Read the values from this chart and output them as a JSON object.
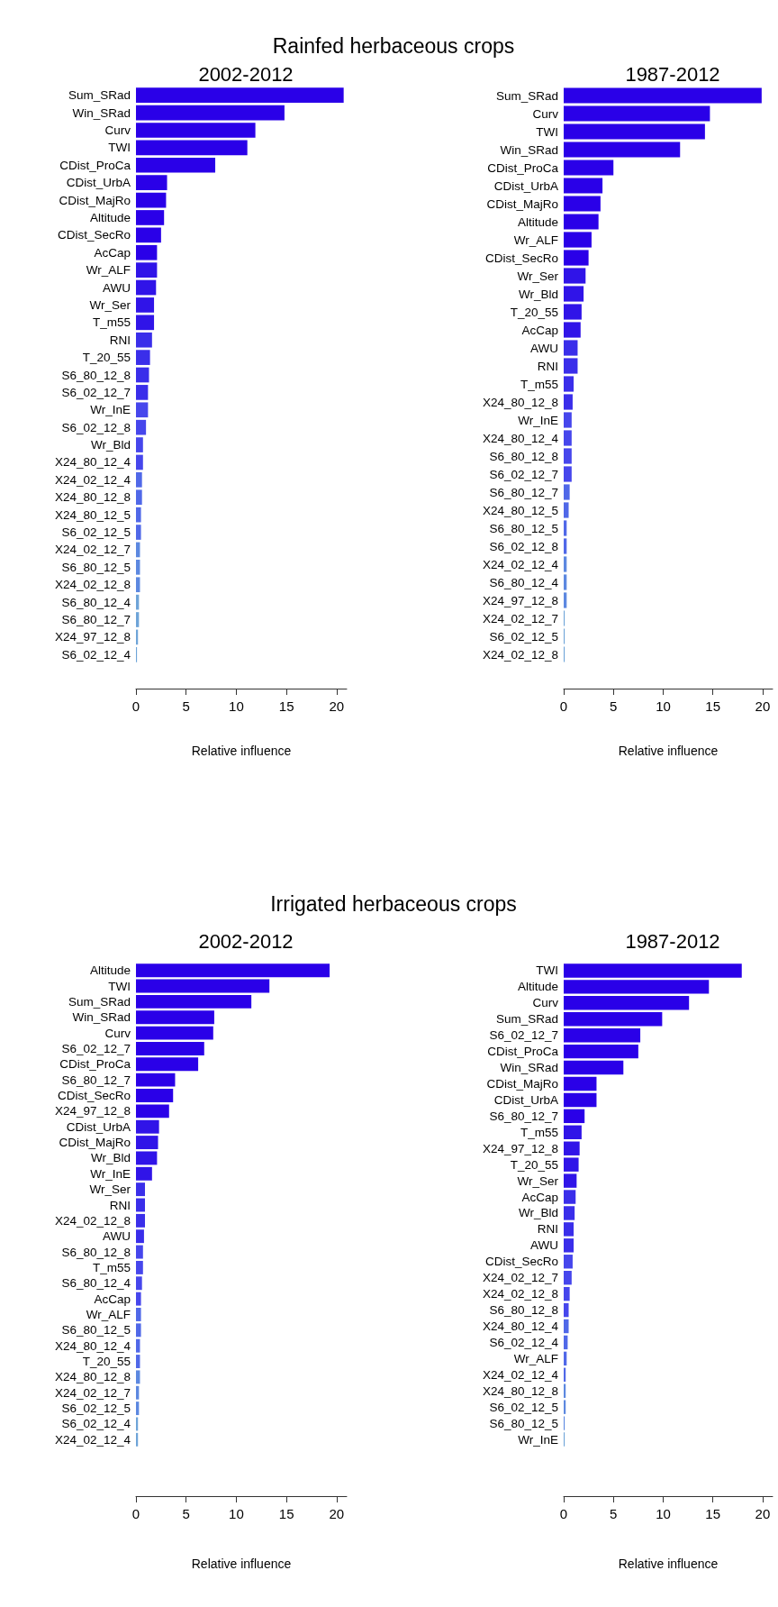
{
  "chart_data": [
    {
      "type": "bar",
      "orientation": "horizontal",
      "title": "2002-2012",
      "xlabel": "Relative influence",
      "annotations": [
        "Rainfed herbaceous crops"
      ],
      "xlim": [
        0,
        21
      ],
      "xticks": [
        0,
        5,
        10,
        15,
        20
      ],
      "grid": false,
      "categories": [
        "Sum_SRad",
        "Win_SRad",
        "Curv",
        "TWI",
        "CDist_ProCa",
        "CDist_UrbA",
        "CDist_MajRo",
        "Altitude",
        "CDist_SecRo",
        "AcCap",
        "Wr_ALF",
        "AWU",
        "Wr_Ser",
        "T_m55",
        "RNI",
        "T_20_55",
        "S6_80_12_8",
        "S6_02_12_7",
        "Wr_InE",
        "S6_02_12_8",
        "Wr_Bld",
        "X24_80_12_4",
        "X24_02_12_4",
        "X24_80_12_8",
        "X24_80_12_5",
        "S6_02_12_5",
        "X24_02_12_7",
        "S6_80_12_5",
        "X24_02_12_8",
        "S6_80_12_4",
        "S6_80_12_7",
        "X24_97_12_8",
        "S6_02_12_4"
      ],
      "values": [
        20.7,
        14.8,
        11.9,
        11.1,
        7.9,
        3.1,
        3.0,
        2.8,
        2.5,
        2.1,
        2.1,
        2.0,
        1.8,
        1.8,
        1.6,
        1.4,
        1.3,
        1.2,
        1.2,
        1.0,
        0.7,
        0.7,
        0.6,
        0.6,
        0.5,
        0.5,
        0.4,
        0.4,
        0.4,
        0.3,
        0.3,
        0.2,
        0.1
      ],
      "colors": [
        "#2a00e8",
        "#2a00e8",
        "#2a00e8",
        "#2a00e8",
        "#2a00e8",
        "#2a00e8",
        "#2a00e8",
        "#2a00e8",
        "#2a00e8",
        "#2a00e8",
        "#3014e8",
        "#3014e8",
        "#3014e8",
        "#3014e8",
        "#3a2eea",
        "#3a2eea",
        "#3a2eea",
        "#3a2eea",
        "#4646ec",
        "#4646ec",
        "#4646ec",
        "#4646ec",
        "#5068e8",
        "#5068e8",
        "#5068e8",
        "#5068e8",
        "#5c88e0",
        "#5c88e0",
        "#5c88e0",
        "#6ea4d8",
        "#6ea4d8",
        "#6ea4d8",
        "#6ea4d8"
      ]
    },
    {
      "type": "bar",
      "orientation": "horizontal",
      "title": "1987-2012",
      "xlabel": "Relative influence",
      "xlim": [
        0,
        21
      ],
      "xticks": [
        0,
        5,
        10,
        15,
        20
      ],
      "grid": false,
      "categories": [
        "Sum_SRad",
        "Curv",
        "TWI",
        "Win_SRad",
        "CDist_ProCa",
        "CDist_UrbA",
        "CDist_MajRo",
        "Altitude",
        "Wr_ALF",
        "CDist_SecRo",
        "Wr_Ser",
        "Wr_Bld",
        "T_20_55",
        "AcCap",
        "AWU",
        "RNI",
        "T_m55",
        "X24_80_12_8",
        "Wr_InE",
        "X24_80_12_4",
        "S6_80_12_8",
        "S6_02_12_7",
        "S6_80_12_7",
        "X24_80_12_5",
        "S6_80_12_5",
        "S6_02_12_8",
        "X24_02_12_4",
        "S6_80_12_4",
        "X24_97_12_8",
        "X24_02_12_7",
        "S6_02_12_5",
        "X24_02_12_8"
      ],
      "values": [
        19.9,
        14.7,
        14.2,
        11.7,
        5.0,
        3.9,
        3.7,
        3.5,
        2.8,
        2.5,
        2.2,
        2.0,
        1.8,
        1.7,
        1.4,
        1.4,
        1.0,
        0.9,
        0.8,
        0.8,
        0.8,
        0.8,
        0.6,
        0.5,
        0.3,
        0.3,
        0.3,
        0.3,
        0.3,
        0.1,
        0.1,
        0.1
      ],
      "colors": [
        "#2a00e8",
        "#2a00e8",
        "#2a00e8",
        "#2a00e8",
        "#2a00e8",
        "#2a00e8",
        "#2a00e8",
        "#2a00e8",
        "#2a00e8",
        "#2a00e8",
        "#3014e8",
        "#3014e8",
        "#3014e8",
        "#3014e8",
        "#3a2eea",
        "#3a2eea",
        "#3a2eea",
        "#3a2eea",
        "#4646ec",
        "#4646ec",
        "#4646ec",
        "#4646ec",
        "#5068e8",
        "#5068e8",
        "#5068e8",
        "#5068e8",
        "#5c88e0",
        "#5c88e0",
        "#5c88e0",
        "#6ea4d8",
        "#6ea4d8",
        "#6ea4d8"
      ]
    },
    {
      "type": "bar",
      "orientation": "horizontal",
      "title": "2002-2012",
      "xlabel": "Relative influence",
      "annotations": [
        "Irrigated herbaceous crops"
      ],
      "xlim": [
        0,
        21
      ],
      "xticks": [
        0,
        5,
        10,
        15,
        20
      ],
      "grid": false,
      "categories": [
        "Altitude",
        "TWI",
        "Sum_SRad",
        "Win_SRad",
        "Curv",
        "S6_02_12_7",
        "CDist_ProCa",
        "S6_80_12_7",
        "CDist_SecRo",
        "X24_97_12_8",
        "CDist_UrbA",
        "CDist_MajRo",
        "Wr_Bld",
        "Wr_InE",
        "Wr_Ser",
        "RNI",
        "X24_02_12_8",
        "AWU",
        "S6_80_12_8",
        "T_m55",
        "S6_80_12_4",
        "AcCap",
        "Wr_ALF",
        "S6_80_12_5",
        "X24_80_12_4",
        "T_20_55",
        "X24_80_12_8",
        "X24_02_12_7",
        "S6_02_12_5",
        "S6_02_12_4",
        "X24_02_12_4"
      ],
      "values": [
        19.3,
        13.3,
        11.5,
        7.8,
        7.7,
        6.8,
        6.2,
        3.9,
        3.7,
        3.3,
        2.3,
        2.2,
        2.1,
        1.6,
        0.9,
        0.9,
        0.9,
        0.8,
        0.7,
        0.7,
        0.6,
        0.5,
        0.5,
        0.5,
        0.4,
        0.4,
        0.4,
        0.3,
        0.3,
        0.2,
        0.2
      ],
      "colors": [
        "#2a00e8",
        "#2a00e8",
        "#2a00e8",
        "#2a00e8",
        "#2a00e8",
        "#2a00e8",
        "#2a00e8",
        "#2a00e8",
        "#2a00e8",
        "#2a00e8",
        "#3014e8",
        "#3014e8",
        "#3014e8",
        "#3014e8",
        "#3a2eea",
        "#3a2eea",
        "#3a2eea",
        "#3a2eea",
        "#4646ec",
        "#4646ec",
        "#4646ec",
        "#4646ec",
        "#5068e8",
        "#5068e8",
        "#5068e8",
        "#5068e8",
        "#5c88e0",
        "#5c88e0",
        "#5c88e0",
        "#6ea4d8",
        "#6ea4d8"
      ]
    },
    {
      "type": "bar",
      "orientation": "horizontal",
      "title": "1987-2012",
      "xlabel": "Relative influence",
      "xlim": [
        0,
        21
      ],
      "xticks": [
        0,
        5,
        10,
        15,
        20
      ],
      "grid": false,
      "categories": [
        "TWI",
        "Altitude",
        "Curv",
        "Sum_SRad",
        "S6_02_12_7",
        "CDist_ProCa",
        "Win_SRad",
        "CDist_MajRo",
        "CDist_UrbA",
        "S6_80_12_7",
        "T_m55",
        "X24_97_12_8",
        "T_20_55",
        "Wr_Ser",
        "AcCap",
        "Wr_Bld",
        "RNI",
        "AWU",
        "CDist_SecRo",
        "X24_02_12_7",
        "X24_02_12_8",
        "S6_80_12_8",
        "X24_80_12_4",
        "S6_02_12_4",
        "Wr_ALF",
        "X24_02_12_4",
        "X24_80_12_8",
        "S6_02_12_5",
        "S6_80_12_5",
        "Wr_InE"
      ],
      "values": [
        17.9,
        14.6,
        12.6,
        9.9,
        7.7,
        7.5,
        6.0,
        3.3,
        3.3,
        2.1,
        1.8,
        1.6,
        1.5,
        1.3,
        1.2,
        1.1,
        1.0,
        1.0,
        0.9,
        0.8,
        0.6,
        0.5,
        0.5,
        0.4,
        0.3,
        0.2,
        0.2,
        0.2,
        0.1,
        0.1
      ],
      "colors": [
        "#2a00e8",
        "#2a00e8",
        "#2a00e8",
        "#2a00e8",
        "#2a00e8",
        "#2a00e8",
        "#2a00e8",
        "#2a00e8",
        "#2a00e8",
        "#2a00e8",
        "#3014e8",
        "#3014e8",
        "#3014e8",
        "#3014e8",
        "#3a2eea",
        "#3a2eea",
        "#3a2eea",
        "#3a2eea",
        "#4646ec",
        "#4646ec",
        "#4646ec",
        "#4646ec",
        "#5068e8",
        "#5068e8",
        "#5068e8",
        "#5068e8",
        "#5c88e0",
        "#5c88e0",
        "#5c88e0",
        "#6ea4d8"
      ]
    }
  ]
}
